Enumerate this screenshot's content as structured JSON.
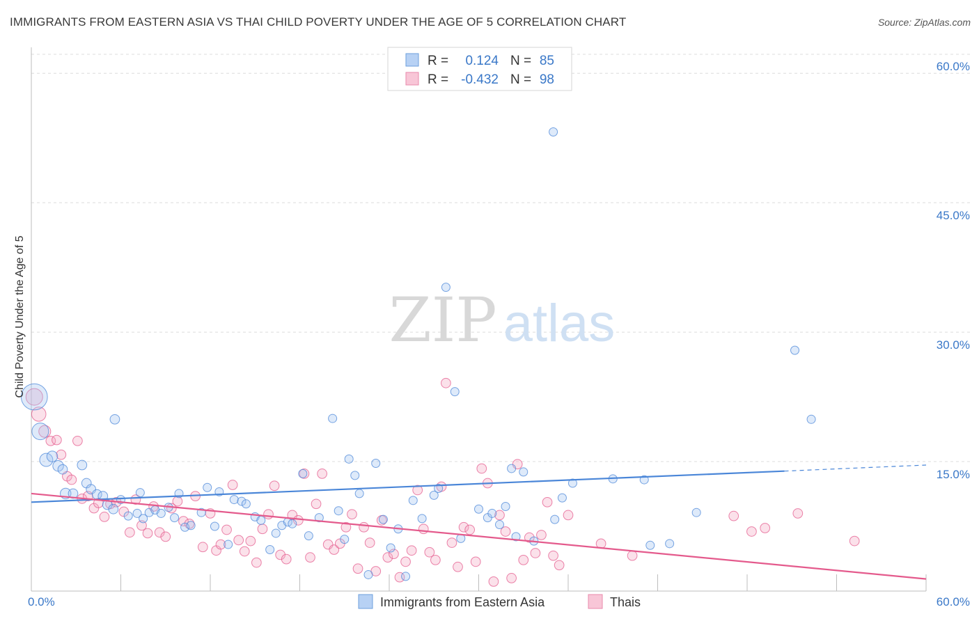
{
  "title": "IMMIGRANTS FROM EASTERN ASIA VS THAI CHILD POVERTY UNDER THE AGE OF 5 CORRELATION CHART",
  "source": "Source: ZipAtlas.com",
  "watermark": {
    "zip": "ZIP",
    "atlas": "atlas"
  },
  "colors": {
    "blue": "#4a86d8",
    "blue_fill": "rgba(160,196,240,0.35)",
    "pink": "#e45a8c",
    "pink_fill": "rgba(244,170,196,0.35)",
    "tick_label": "#3a78c8"
  },
  "stats_legend": [
    {
      "r_label": "R =",
      "r_value": "0.124",
      "n_label": "N =",
      "n_value": "85",
      "color": "blue"
    },
    {
      "r_label": "R =",
      "r_value": "-0.432",
      "n_label": "N =",
      "n_value": "98",
      "color": "pink"
    }
  ],
  "chart_data": {
    "type": "scatter",
    "ylabel": "Child Poverty Under the Age of 5",
    "xlim": [
      0,
      60
    ],
    "ylim": [
      0,
      63
    ],
    "y_ticks": [
      {
        "value": 15,
        "label": "15.0%"
      },
      {
        "value": 30,
        "label": "30.0%"
      },
      {
        "value": 45,
        "label": "45.0%"
      },
      {
        "value": 60,
        "label": "60.0%"
      }
    ],
    "x_tick_labels": {
      "min": "0.0%",
      "max": "60.0%"
    },
    "grid": "horizontal dashed",
    "legend_position": "top-center",
    "series": [
      {
        "name": "Immigrants from Eastern Asia",
        "color": "blue",
        "trend": {
          "x0": 0,
          "y0": 10.3,
          "x1": 50.5,
          "y1": 13.9,
          "dash_x1": 60,
          "dash_y1": 14.6
        },
        "points": [
          [
            0.2,
            22.5,
            2.2
          ],
          [
            0.6,
            18.5,
            1.4
          ],
          [
            1.0,
            15.2,
            1.1
          ],
          [
            1.4,
            15.6,
            0.9
          ],
          [
            1.8,
            14.5,
            0.9
          ],
          [
            2.1,
            14.1,
            0.8
          ],
          [
            2.3,
            11.3,
            0.9
          ],
          [
            2.8,
            11.3,
            0.8
          ],
          [
            3.4,
            14.6,
            0.8
          ],
          [
            3.7,
            12.5,
            0.8
          ],
          [
            4.0,
            11.8,
            0.8
          ],
          [
            4.4,
            11.2,
            0.8
          ],
          [
            4.8,
            11.0,
            0.8
          ],
          [
            5.1,
            10.0,
            0.8
          ],
          [
            5.5,
            9.5,
            0.8
          ],
          [
            5.6,
            19.9,
            0.8
          ],
          [
            6.0,
            10.6,
            0.7
          ],
          [
            6.5,
            8.7,
            0.7
          ],
          [
            7.1,
            9.0,
            0.7
          ],
          [
            7.3,
            11.4,
            0.7
          ],
          [
            7.5,
            8.4,
            0.7
          ],
          [
            7.9,
            9.1,
            0.7
          ],
          [
            8.3,
            9.4,
            0.7
          ],
          [
            8.7,
            9.0,
            0.7
          ],
          [
            9.2,
            9.7,
            0.7
          ],
          [
            9.6,
            8.5,
            0.7
          ],
          [
            9.9,
            11.3,
            0.7
          ],
          [
            10.3,
            7.4,
            0.7
          ],
          [
            10.7,
            7.6,
            0.7
          ],
          [
            11.4,
            9.1,
            0.7
          ],
          [
            11.8,
            12.0,
            0.7
          ],
          [
            12.3,
            7.5,
            0.7
          ],
          [
            12.6,
            11.5,
            0.7
          ],
          [
            13.2,
            5.4,
            0.7
          ],
          [
            13.6,
            10.6,
            0.7
          ],
          [
            14.1,
            10.4,
            0.7
          ],
          [
            14.4,
            10.1,
            0.7
          ],
          [
            15.0,
            8.6,
            0.7
          ],
          [
            15.4,
            8.2,
            0.7
          ],
          [
            16.0,
            4.8,
            0.7
          ],
          [
            16.4,
            6.7,
            0.7
          ],
          [
            16.8,
            7.6,
            0.7
          ],
          [
            17.2,
            8.0,
            0.7
          ],
          [
            17.5,
            7.8,
            0.7
          ],
          [
            18.2,
            13.6,
            0.7
          ],
          [
            18.6,
            6.4,
            0.7
          ],
          [
            19.3,
            8.5,
            0.7
          ],
          [
            20.2,
            20.0,
            0.7
          ],
          [
            20.6,
            9.3,
            0.7
          ],
          [
            21.0,
            6.0,
            0.7
          ],
          [
            21.3,
            15.3,
            0.7
          ],
          [
            21.7,
            13.4,
            0.7
          ],
          [
            22.0,
            11.3,
            0.7
          ],
          [
            22.6,
            1.9,
            0.7
          ],
          [
            23.1,
            14.8,
            0.7
          ],
          [
            23.6,
            8.3,
            0.7
          ],
          [
            24.1,
            5.0,
            0.7
          ],
          [
            24.6,
            7.2,
            0.7
          ],
          [
            25.1,
            1.7,
            0.7
          ],
          [
            25.6,
            10.5,
            0.7
          ],
          [
            26.2,
            8.4,
            0.7
          ],
          [
            27.0,
            11.1,
            0.7
          ],
          [
            27.3,
            11.9,
            0.7
          ],
          [
            27.8,
            35.2,
            0.7
          ],
          [
            28.4,
            23.1,
            0.7
          ],
          [
            28.8,
            6.1,
            0.7
          ],
          [
            30.0,
            9.5,
            0.7
          ],
          [
            30.6,
            8.5,
            0.7
          ],
          [
            30.9,
            9.0,
            0.7
          ],
          [
            31.4,
            7.7,
            0.7
          ],
          [
            31.8,
            9.8,
            0.7
          ],
          [
            32.2,
            14.2,
            0.7
          ],
          [
            32.5,
            6.3,
            0.7
          ],
          [
            33.0,
            13.8,
            0.7
          ],
          [
            33.7,
            5.8,
            0.7
          ],
          [
            35.0,
            53.2,
            0.7
          ],
          [
            35.1,
            8.3,
            0.7
          ],
          [
            35.6,
            10.8,
            0.7
          ],
          [
            36.3,
            12.5,
            0.7
          ],
          [
            39.0,
            13.0,
            0.7
          ],
          [
            41.1,
            12.9,
            0.7
          ],
          [
            41.5,
            5.3,
            0.7
          ],
          [
            42.8,
            5.5,
            0.7
          ],
          [
            44.6,
            9.1,
            0.7
          ],
          [
            51.2,
            27.9,
            0.7
          ],
          [
            52.3,
            19.9,
            0.7
          ]
        ]
      },
      {
        "name": "Thais",
        "color": "pink",
        "trend": {
          "x0": 0,
          "y0": 11.3,
          "x1": 60,
          "y1": 1.4
        },
        "points": [
          [
            0.2,
            22.5,
            1.4
          ],
          [
            0.5,
            20.5,
            1.2
          ],
          [
            0.9,
            18.5,
            1.0
          ],
          [
            1.3,
            17.4,
            0.8
          ],
          [
            1.7,
            17.5,
            0.8
          ],
          [
            2.0,
            15.8,
            0.8
          ],
          [
            2.4,
            13.3,
            0.8
          ],
          [
            2.7,
            12.9,
            0.8
          ],
          [
            3.1,
            17.4,
            0.8
          ],
          [
            3.4,
            10.7,
            0.8
          ],
          [
            3.8,
            11.0,
            0.8
          ],
          [
            4.2,
            9.6,
            0.8
          ],
          [
            4.5,
            10.2,
            0.8
          ],
          [
            4.9,
            8.6,
            0.8
          ],
          [
            5.3,
            10.1,
            0.8
          ],
          [
            5.7,
            10.3,
            0.8
          ],
          [
            6.2,
            9.2,
            0.8
          ],
          [
            6.6,
            6.8,
            0.8
          ],
          [
            7.0,
            10.6,
            0.8
          ],
          [
            7.4,
            7.6,
            0.8
          ],
          [
            7.8,
            6.7,
            0.8
          ],
          [
            8.2,
            9.8,
            0.8
          ],
          [
            8.6,
            6.8,
            0.8
          ],
          [
            9.0,
            6.3,
            0.8
          ],
          [
            9.4,
            9.6,
            0.8
          ],
          [
            9.8,
            10.4,
            0.8
          ],
          [
            10.2,
            8.1,
            0.8
          ],
          [
            10.6,
            7.8,
            0.8
          ],
          [
            11.0,
            11.0,
            0.8
          ],
          [
            11.5,
            5.1,
            0.8
          ],
          [
            12.0,
            9.0,
            0.8
          ],
          [
            12.4,
            4.7,
            0.8
          ],
          [
            12.7,
            5.4,
            0.8
          ],
          [
            13.1,
            7.1,
            0.8
          ],
          [
            13.5,
            12.3,
            0.8
          ],
          [
            13.9,
            5.9,
            0.8
          ],
          [
            14.3,
            4.6,
            0.8
          ],
          [
            14.7,
            5.8,
            0.8
          ],
          [
            15.1,
            3.3,
            0.8
          ],
          [
            15.5,
            7.2,
            0.8
          ],
          [
            15.9,
            8.9,
            0.8
          ],
          [
            16.3,
            12.2,
            0.8
          ],
          [
            16.7,
            4.2,
            0.8
          ],
          [
            17.1,
            3.7,
            0.8
          ],
          [
            17.5,
            8.8,
            0.8
          ],
          [
            17.9,
            8.2,
            0.8
          ],
          [
            18.3,
            13.6,
            0.8
          ],
          [
            18.7,
            3.9,
            0.8
          ],
          [
            19.1,
            10.1,
            0.8
          ],
          [
            19.5,
            13.6,
            0.8
          ],
          [
            19.9,
            5.4,
            0.8
          ],
          [
            20.3,
            4.8,
            0.8
          ],
          [
            20.7,
            5.5,
            0.8
          ],
          [
            21.1,
            7.4,
            0.8
          ],
          [
            21.5,
            8.9,
            0.8
          ],
          [
            21.9,
            2.6,
            0.8
          ],
          [
            22.3,
            7.4,
            0.8
          ],
          [
            22.7,
            5.6,
            0.8
          ],
          [
            23.1,
            2.3,
            0.8
          ],
          [
            23.5,
            8.2,
            0.8
          ],
          [
            23.9,
            3.9,
            0.8
          ],
          [
            24.3,
            4.3,
            0.8
          ],
          [
            24.7,
            1.6,
            0.8
          ],
          [
            25.1,
            3.4,
            0.8
          ],
          [
            25.5,
            4.7,
            0.8
          ],
          [
            25.9,
            11.7,
            0.8
          ],
          [
            26.3,
            7.2,
            0.8
          ],
          [
            26.7,
            4.5,
            0.8
          ],
          [
            27.1,
            3.6,
            0.8
          ],
          [
            27.5,
            12.1,
            0.8
          ],
          [
            27.8,
            24.1,
            0.8
          ],
          [
            28.2,
            5.6,
            0.8
          ],
          [
            28.6,
            2.8,
            0.8
          ],
          [
            29.0,
            7.4,
            0.8
          ],
          [
            29.4,
            7.1,
            0.8
          ],
          [
            29.8,
            3.4,
            0.8
          ],
          [
            30.2,
            14.2,
            0.8
          ],
          [
            30.6,
            12.5,
            0.8
          ],
          [
            31.0,
            1.1,
            0.8
          ],
          [
            31.4,
            8.8,
            0.8
          ],
          [
            31.8,
            6.9,
            0.8
          ],
          [
            32.2,
            1.5,
            0.8
          ],
          [
            32.6,
            14.7,
            0.8
          ],
          [
            33.0,
            3.6,
            0.8
          ],
          [
            33.4,
            6.2,
            0.8
          ],
          [
            33.8,
            4.4,
            0.8
          ],
          [
            34.2,
            6.5,
            0.8
          ],
          [
            34.6,
            10.3,
            0.8
          ],
          [
            35.0,
            4.1,
            0.8
          ],
          [
            35.4,
            3.0,
            0.8
          ],
          [
            36.0,
            8.8,
            0.8
          ],
          [
            38.2,
            5.5,
            0.8
          ],
          [
            40.3,
            4.1,
            0.8
          ],
          [
            47.1,
            8.7,
            0.8
          ],
          [
            48.3,
            6.9,
            0.8
          ],
          [
            49.2,
            7.3,
            0.8
          ],
          [
            51.4,
            9.0,
            0.8
          ],
          [
            55.2,
            5.8,
            0.8
          ]
        ]
      }
    ]
  }
}
